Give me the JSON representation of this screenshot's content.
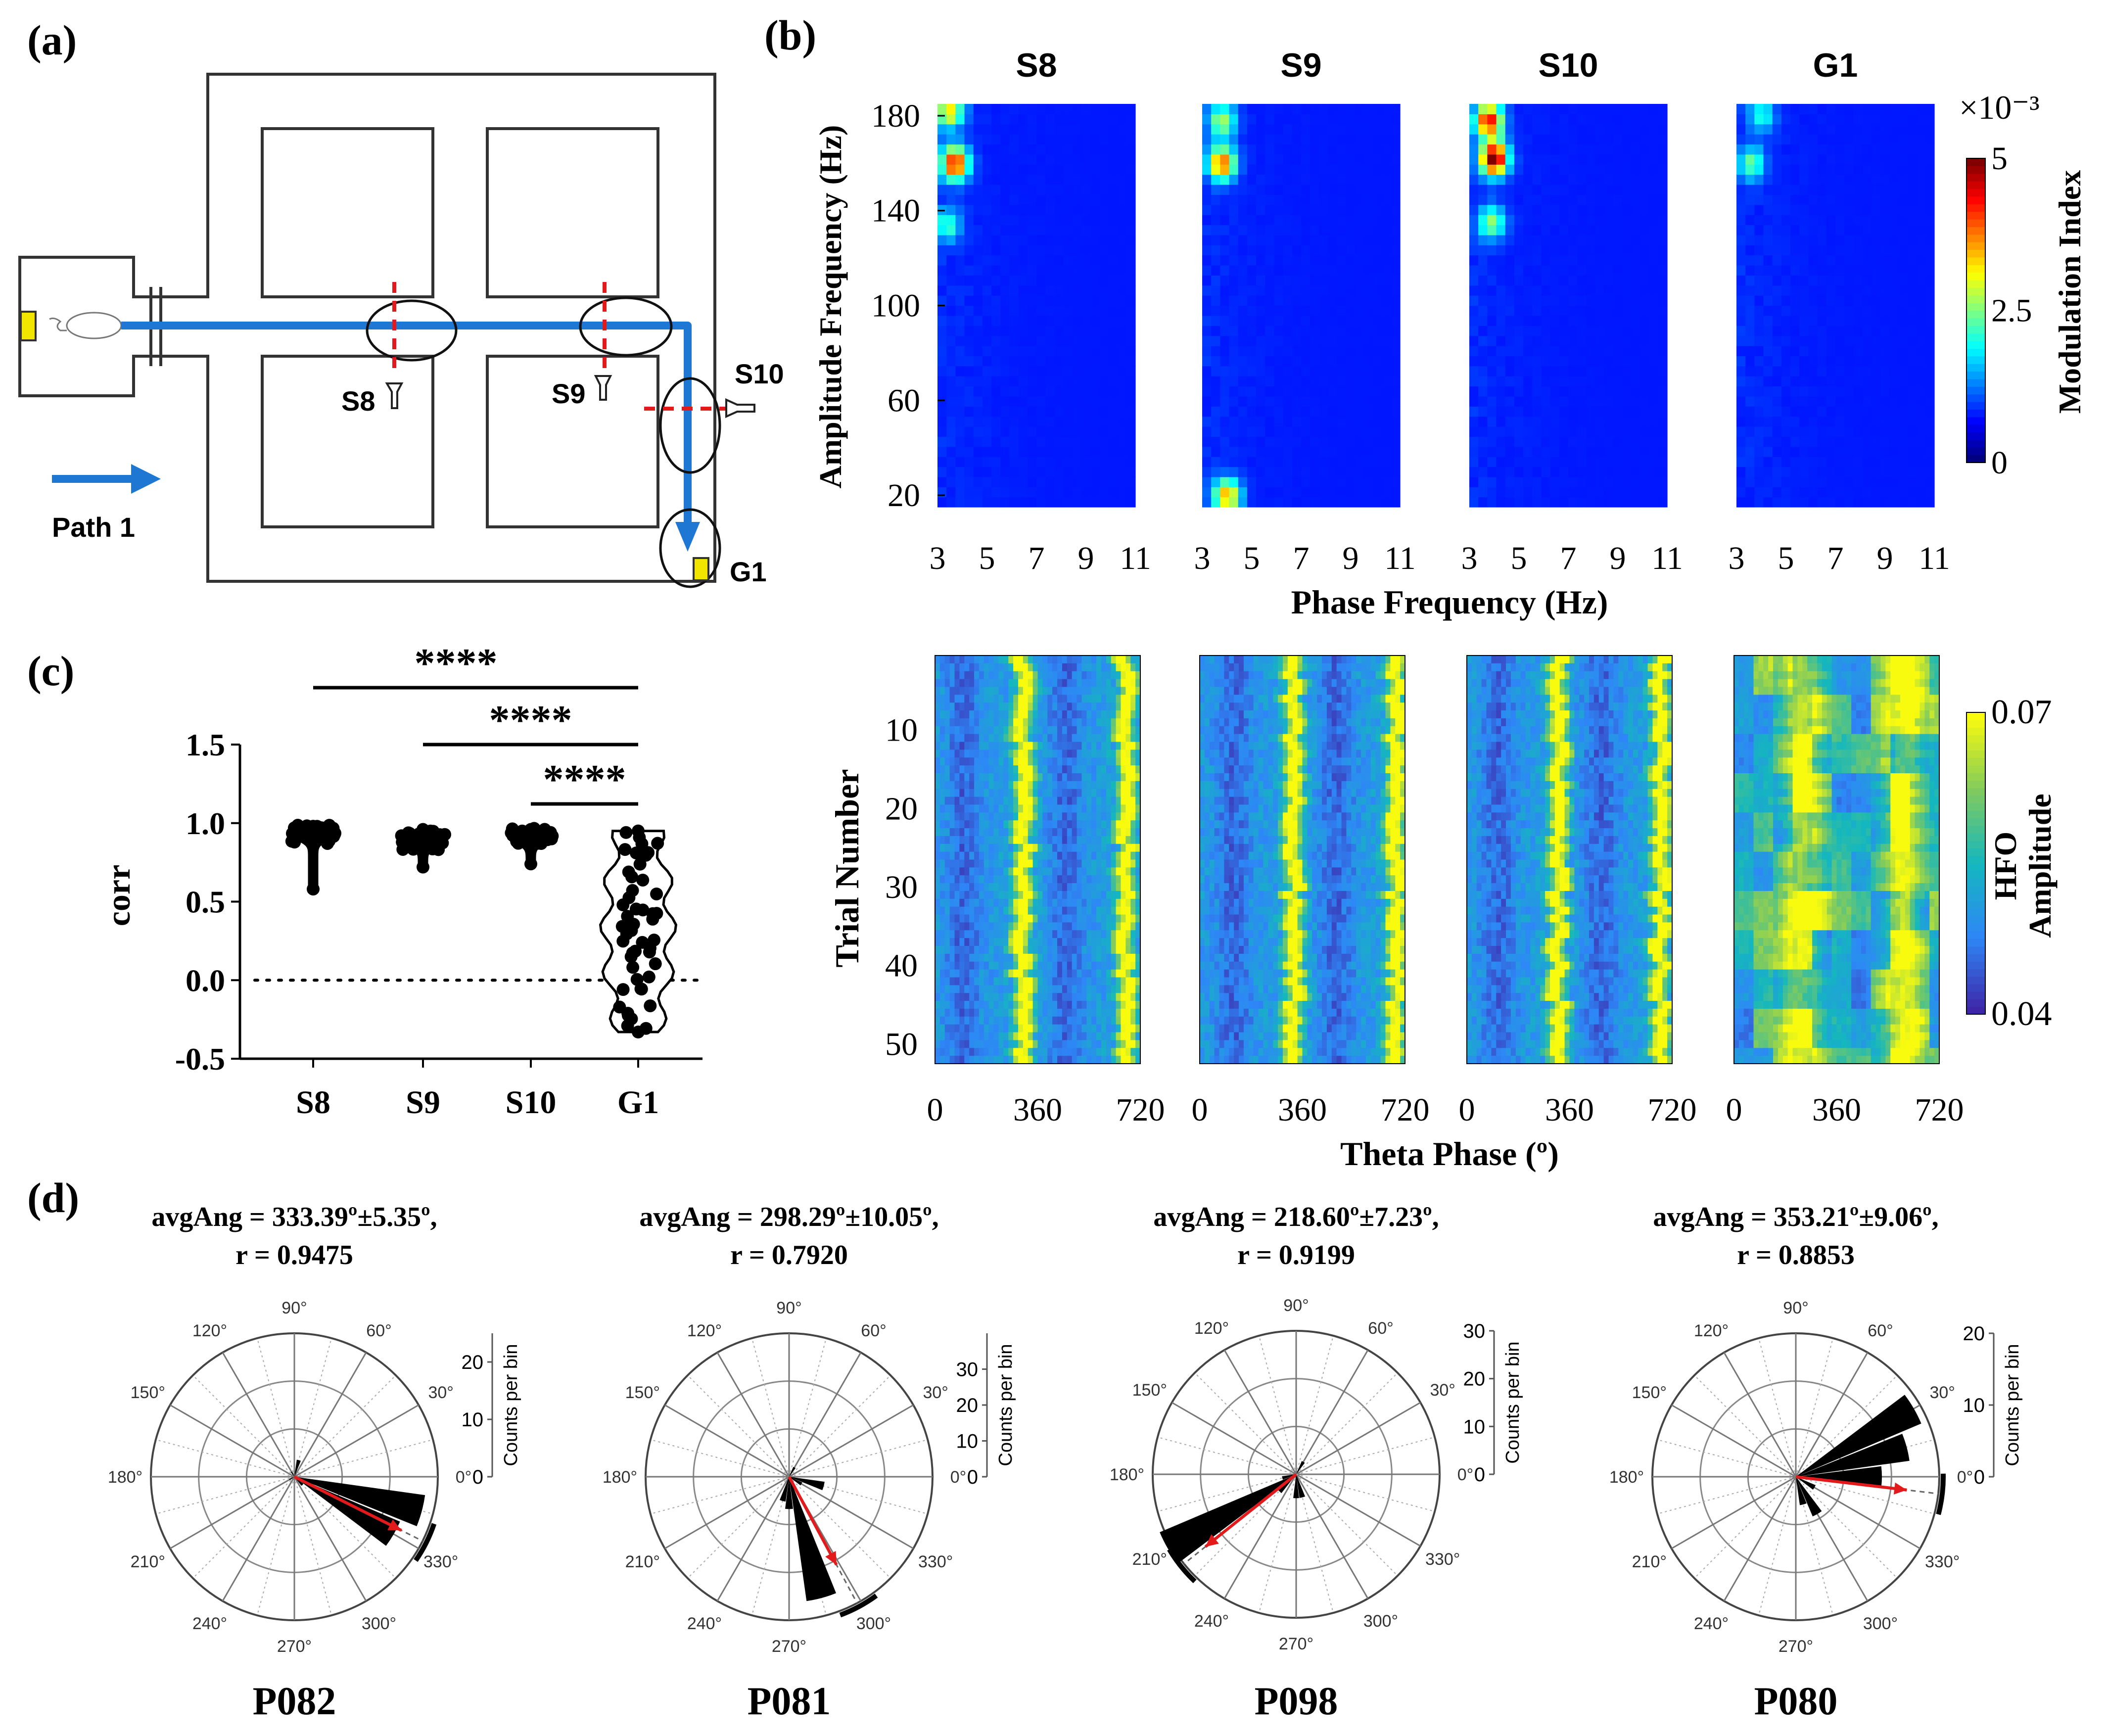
{
  "panel_labels": {
    "a": "(a)",
    "b": "(b)",
    "c": "(c)",
    "d": "(d)"
  },
  "maze": {
    "sites": [
      "S8",
      "S9",
      "S10",
      "G1"
    ],
    "path_label": "Path 1",
    "colors": {
      "path": "#1f77d4",
      "marker": "#e31a1c",
      "reward": "#f2e600"
    }
  },
  "chart_data": [
    {
      "type": "heatmap",
      "id": "b-top",
      "panels": [
        "S8",
        "S9",
        "S10",
        "G1"
      ],
      "xlabel": "Phase Frequency (Hz)",
      "ylabel": "Amplitude Frequency (Hz)",
      "xticks": [
        3,
        5,
        7,
        9,
        11
      ],
      "yticks": [
        20,
        60,
        100,
        140,
        180
      ],
      "xlim": [
        3,
        11
      ],
      "ylim": [
        15,
        185
      ],
      "colorbar": {
        "label": "Modulation Index",
        "exponent": "×10⁻³",
        "ticks": [
          "5",
          "2.5",
          "0"
        ],
        "range": [
          0,
          5
        ]
      },
      "colormap": "jet",
      "hotspots": {
        "S8": [
          {
            "x": 3.7,
            "y": 160,
            "v": 4.2
          },
          {
            "x": 3.5,
            "y": 182,
            "v": 2.8
          },
          {
            "x": 3.4,
            "y": 134,
            "v": 1.6
          }
        ],
        "S9": [
          {
            "x": 3.8,
            "y": 160,
            "v": 3.6
          },
          {
            "x": 4.0,
            "y": 20,
            "v": 3.2
          },
          {
            "x": 3.8,
            "y": 178,
            "v": 2.2
          }
        ],
        "S10": [
          {
            "x": 4.0,
            "y": 162,
            "v": 5.0
          },
          {
            "x": 3.8,
            "y": 178,
            "v": 4.2
          },
          {
            "x": 3.9,
            "y": 135,
            "v": 2.0
          }
        ],
        "G1": [
          {
            "x": 3.6,
            "y": 160,
            "v": 1.8
          },
          {
            "x": 4.0,
            "y": 180,
            "v": 1.4
          }
        ]
      }
    },
    {
      "type": "heatmap",
      "id": "b-bottom",
      "panels": [
        "S8",
        "S9",
        "S10",
        "G1"
      ],
      "xlabel": "Theta Phase (º)",
      "ylabel": "Trial Number",
      "xticks": [
        0,
        360,
        720
      ],
      "yticks": [
        10,
        20,
        30,
        40,
        50
      ],
      "xlim": [
        0,
        720
      ],
      "ylim": [
        1,
        52
      ],
      "colorbar": {
        "label_line1": "HFO",
        "label_line2": "Amplitude",
        "ticks": [
          "0.07",
          "0.04"
        ],
        "range": [
          0.04,
          0.07
        ]
      },
      "colormap": "parula",
      "peak_phase_deg": {
        "S8": [
          310,
          670
        ],
        "S9": [
          330,
          690
        ],
        "S10": [
          320,
          680
        ],
        "G1": [
          240,
          600
        ]
      }
    },
    {
      "type": "violin",
      "id": "c",
      "categories": [
        "S8",
        "S9",
        "S10",
        "G1"
      ],
      "ylabel": "corr",
      "yticks": [
        "1.5",
        "1.0",
        "0.5",
        "0.0",
        "-0.5"
      ],
      "ylim": [
        -0.5,
        1.5
      ],
      "reference_line": 0.0,
      "series": [
        {
          "category": "S8",
          "median": 0.93,
          "min": 0.58,
          "max": 0.98
        },
        {
          "category": "S9",
          "median": 0.89,
          "min": 0.72,
          "max": 0.96
        },
        {
          "category": "S10",
          "median": 0.91,
          "min": 0.74,
          "max": 0.96
        },
        {
          "category": "G1",
          "median": 0.35,
          "min": -0.33,
          "max": 0.95
        }
      ],
      "significance": [
        {
          "from": "S8",
          "to": "G1",
          "label": "****"
        },
        {
          "from": "S9",
          "to": "G1",
          "label": "****"
        },
        {
          "from": "S10",
          "to": "G1",
          "label": "****"
        }
      ]
    },
    {
      "type": "polar",
      "id": "d",
      "angle_labels": [
        "0°",
        "30°",
        "60°",
        "90°",
        "120°",
        "150°",
        "180°",
        "210°",
        "240°",
        "270°",
        "300°",
        "330°"
      ],
      "radial_label": "Counts per bin",
      "panels": [
        {
          "name": "P082",
          "title_line1": "avgAng = 333.39º±5.35º,",
          "title_line2": "r = 0.9475",
          "mean_angle": 333.39,
          "r": 0.9475,
          "rmax": 25,
          "rticks": [
            "0",
            "10",
            "20"
          ],
          "bins": [
            {
              "angle": 345,
              "count": 23
            },
            {
              "angle": 330,
              "count": 20
            },
            {
              "angle": 315,
              "count": 2
            },
            {
              "angle": 75,
              "count": 3
            },
            {
              "angle": 120,
              "count": 1
            },
            {
              "angle": 210,
              "count": 1
            }
          ]
        },
        {
          "name": "P081",
          "title_line1": "avgAng = 298.29º±10.05º,",
          "title_line2": "r = 0.7920",
          "mean_angle": 298.29,
          "r": 0.792,
          "rmax": 40,
          "rticks": [
            "0",
            "10",
            "20",
            "30"
          ],
          "bins": [
            {
              "angle": 285,
              "count": 35
            },
            {
              "angle": 345,
              "count": 10
            },
            {
              "angle": 255,
              "count": 7
            },
            {
              "angle": 270,
              "count": 9
            },
            {
              "angle": 60,
              "count": 3
            },
            {
              "angle": 330,
              "count": 4
            }
          ]
        },
        {
          "name": "P098",
          "title_line1": "avgAng = 218.60º±7.23º,",
          "title_line2": "r = 0.9199",
          "mean_angle": 218.6,
          "r": 0.9199,
          "rmax": 30,
          "rticks": [
            "0",
            "10",
            "20",
            "30"
          ],
          "bins": [
            {
              "angle": 210,
              "count": 31
            },
            {
              "angle": 225,
              "count": 5
            },
            {
              "angle": 270,
              "count": 5
            },
            {
              "angle": 285,
              "count": 5
            },
            {
              "angle": 60,
              "count": 3
            },
            {
              "angle": 195,
              "count": 3
            }
          ]
        },
        {
          "name": "P080",
          "title_line1": "avgAng = 353.21º±9.06º,",
          "title_line2": "r = 0.8853",
          "mean_angle": 353.21,
          "r": 0.8853,
          "rmax": 20,
          "rticks": [
            "0",
            "10",
            "20"
          ],
          "bins": [
            {
              "angle": 30,
              "count": 19
            },
            {
              "angle": 15,
              "count": 16
            },
            {
              "angle": 0,
              "count": 12
            },
            {
              "angle": 300,
              "count": 6
            },
            {
              "angle": 285,
              "count": 4
            },
            {
              "angle": 330,
              "count": 3
            }
          ]
        }
      ]
    }
  ]
}
